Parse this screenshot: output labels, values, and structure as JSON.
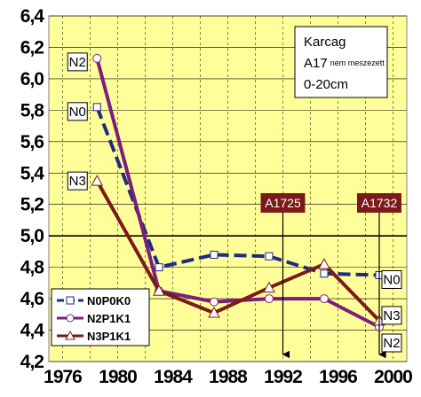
{
  "chart_data": {
    "type": "line",
    "title": "",
    "info_box": {
      "line1": "Karcag",
      "line2_main": "A17",
      "line2_small": "nem meszezett",
      "line3": "0-20cm"
    },
    "xlim": [
      1975,
      2001
    ],
    "ylim": [
      4.2,
      6.4
    ],
    "x_ticks": [
      "1976",
      "1980",
      "1984",
      "1988",
      "1992",
      "1996",
      "2000"
    ],
    "y_ticks": [
      "4,2",
      "4,4",
      "4,6",
      "4,8",
      "5,0",
      "5,2",
      "5,4",
      "5,6",
      "5,8",
      "6,0",
      "6,2",
      "6,4"
    ],
    "reference_line": 5.0,
    "grid": true,
    "legend_position": "bottom-left",
    "series": [
      {
        "name": "N0P0K0",
        "color": "#1f2a80",
        "marker": "square",
        "dashed": true,
        "label": "N0",
        "x": [
          1978.5,
          1983,
          1987,
          1991,
          1995,
          1999
        ],
        "y": [
          5.82,
          4.8,
          4.88,
          4.87,
          4.76,
          4.75
        ]
      },
      {
        "name": "N2P1K1",
        "color": "#7a1f7a",
        "marker": "circle",
        "dashed": false,
        "label": "N2",
        "x": [
          1978.5,
          1983,
          1987,
          1991,
          1995,
          1999
        ],
        "y": [
          6.13,
          4.65,
          4.58,
          4.6,
          4.6,
          4.42
        ]
      },
      {
        "name": "N3P1K1",
        "color": "#7a1a1a",
        "marker": "triangle",
        "dashed": false,
        "label": "N3",
        "x": [
          1978.5,
          1983,
          1987,
          1991,
          1995,
          1999
        ],
        "y": [
          5.35,
          4.65,
          4.51,
          4.67,
          4.82,
          4.46
        ]
      }
    ],
    "annotations": [
      {
        "text": "A1725",
        "x": 1992,
        "color": "#7a1a1a"
      },
      {
        "text": "A1732",
        "x": 1999,
        "color": "#7a1a1a"
      }
    ]
  }
}
